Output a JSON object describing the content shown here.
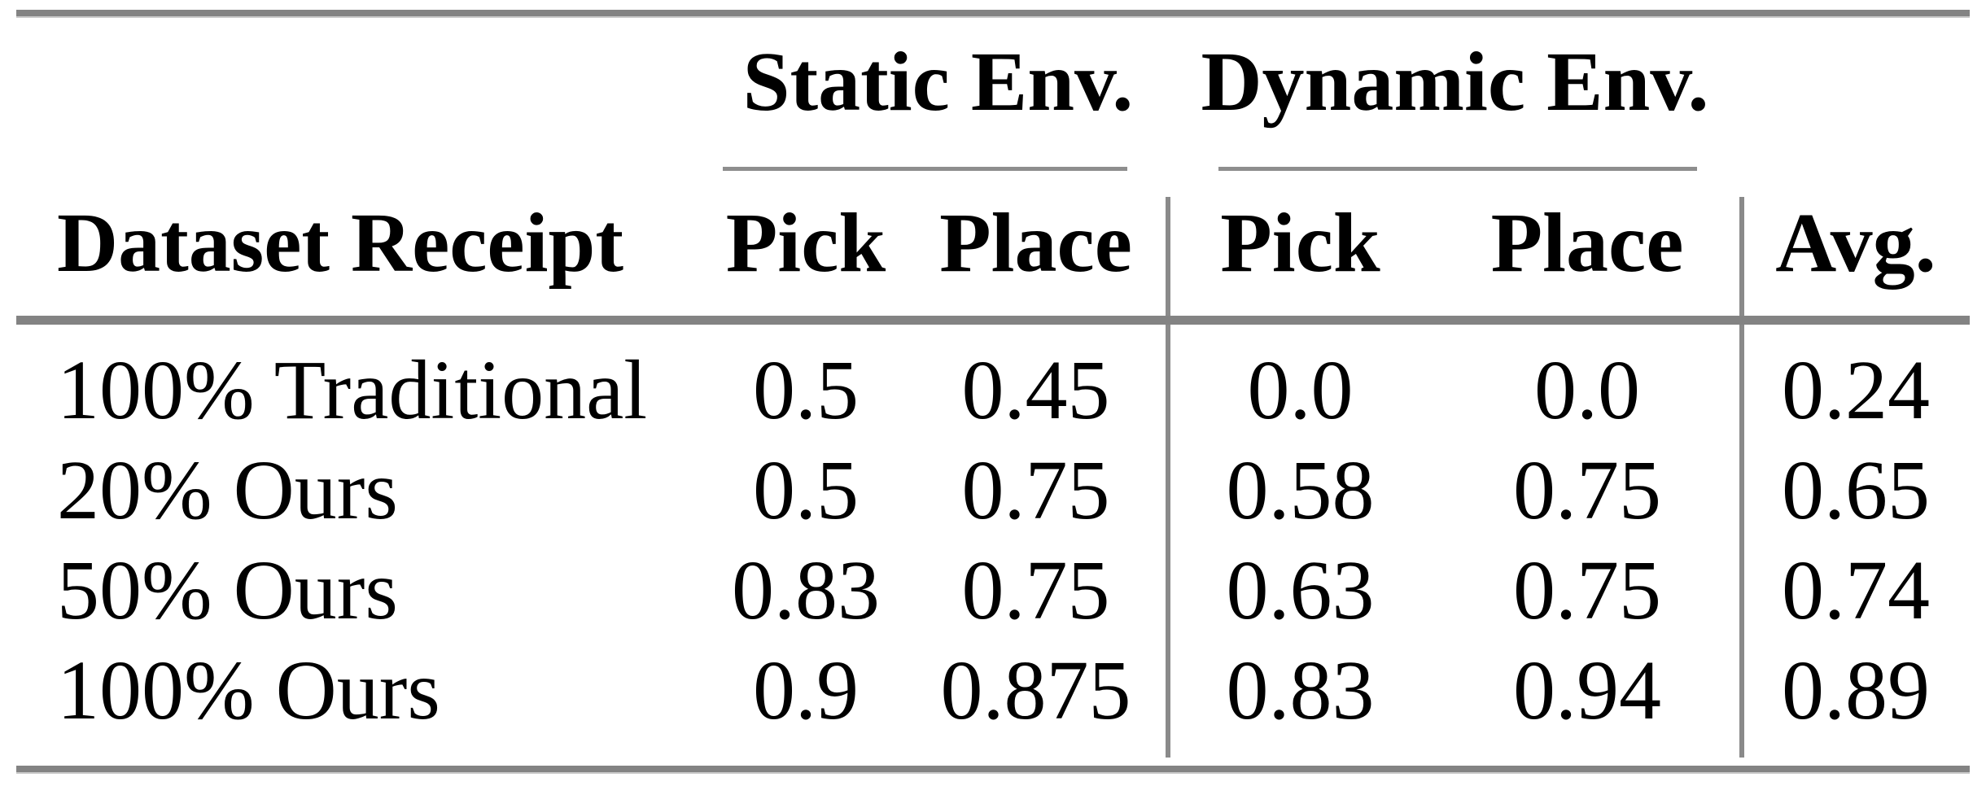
{
  "table": {
    "title_semantic": "pick-place success-rate results table",
    "col_groups": [
      {
        "label": "Static Env."
      },
      {
        "label": "Dynamic Env."
      }
    ],
    "headers": {
      "row_label": "Dataset Receipt",
      "static_pick": "Pick",
      "static_place": "Place",
      "dynamic_pick": "Pick",
      "dynamic_place": "Place",
      "avg": "Avg."
    },
    "rows": [
      {
        "label": "100% Traditional",
        "values": [
          "0.5",
          "0.45",
          "0.0",
          "0.0",
          "0.24"
        ]
      },
      {
        "label": "20% Ours",
        "values": [
          "0.5",
          "0.75",
          "0.58",
          "0.75",
          "0.65"
        ]
      },
      {
        "label": "50% Ours",
        "values": [
          "0.83",
          "0.75",
          "0.63",
          "0.75",
          "0.74"
        ]
      },
      {
        "label": "100% Ours",
        "values": [
          "0.9",
          "0.875",
          "0.83",
          "0.94",
          "0.89"
        ]
      }
    ],
    "colors": {
      "heavy_rule": "#838383",
      "light_rule": "#8e8e8e",
      "text": "#000000",
      "background": "#ffffff"
    }
  },
  "chart_data": {
    "type": "table",
    "title": "Dataset Receipt results",
    "column_groups": [
      "Static Env.",
      "Static Env.",
      "Dynamic Env.",
      "Dynamic Env.",
      ""
    ],
    "columns": [
      "Static Env. Pick",
      "Static Env. Place",
      "Dynamic Env. Pick",
      "Dynamic Env. Place",
      "Avg."
    ],
    "row_labels": [
      "100% Traditional",
      "20% Ours",
      "50% Ours",
      "100% Ours"
    ],
    "values": [
      [
        0.5,
        0.45,
        0.0,
        0.0,
        0.24
      ],
      [
        0.5,
        0.75,
        0.58,
        0.75,
        0.65
      ],
      [
        0.83,
        0.75,
        0.63,
        0.75,
        0.74
      ],
      [
        0.9,
        0.875,
        0.83,
        0.94,
        0.89
      ]
    ]
  }
}
